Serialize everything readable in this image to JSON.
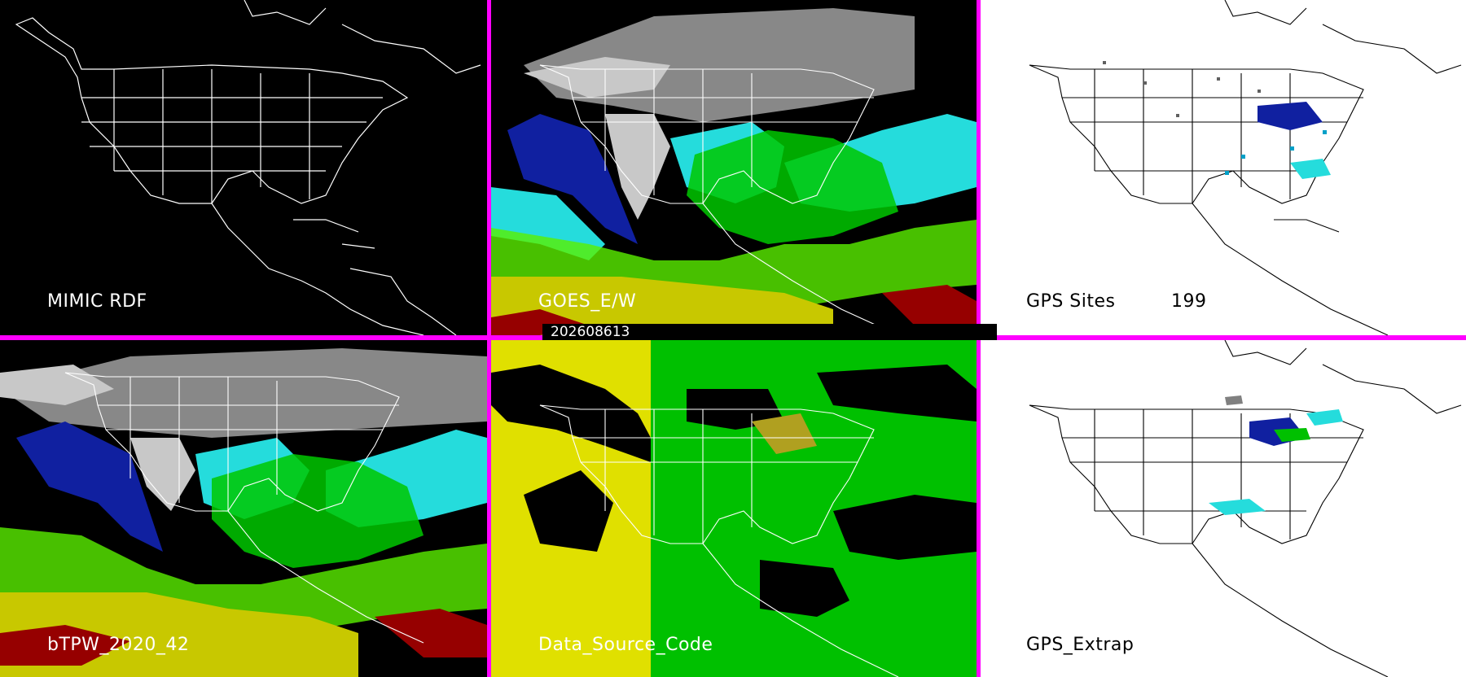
{
  "panels": {
    "mimic_rdf": {
      "label": "MIMIC RDF"
    },
    "goes": {
      "label": "GOES_E/W"
    },
    "gps_sites": {
      "label": "GPS Sites",
      "count": "199"
    },
    "btpw": {
      "label": "bTPW_2020_42"
    },
    "data_source": {
      "label": "Data_Source_Code"
    },
    "gps_extrap": {
      "label": "GPS_Extrap"
    }
  },
  "timestamp": "202608613",
  "colors": {
    "divider": "#ff00ff",
    "ocean_dark": "#000000",
    "land_white": "#ffffff",
    "tpw_cyan": "#25dcdc",
    "tpw_green": "#00c800",
    "tpw_lime": "#5af000",
    "tpw_yellow": "#c8c800",
    "tpw_red": "#960000",
    "tpw_blue": "#1020a0",
    "tpw_gray": "#909090",
    "src_yellow": "#e0e000",
    "src_green": "#00c000"
  }
}
